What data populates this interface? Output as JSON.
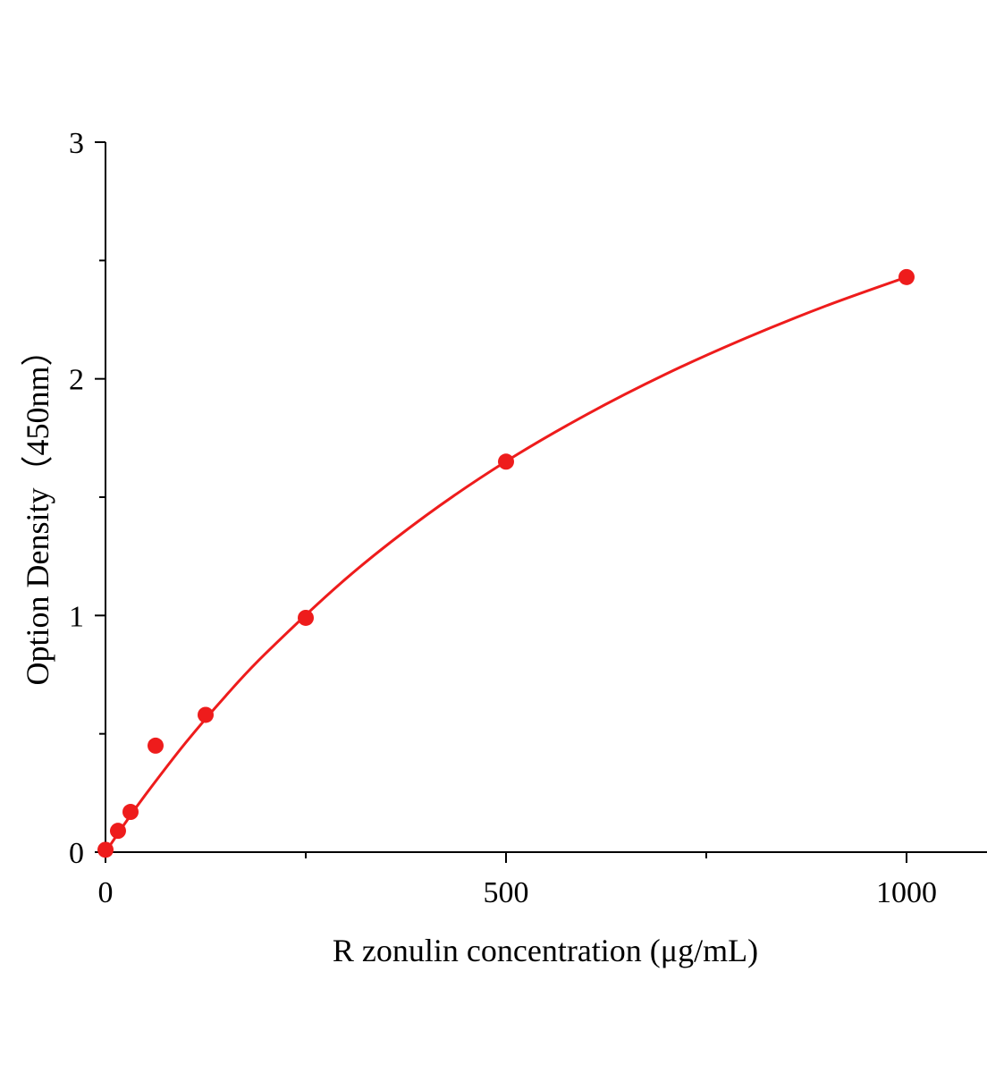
{
  "chart_data": {
    "type": "scatter",
    "title": "",
    "xlabel": "R zonulin  concentration (μg/mL)",
    "ylabel": "Option Density（450nm）",
    "xlim": [
      0,
      1100
    ],
    "ylim": [
      0,
      3
    ],
    "x_ticks": [
      "0",
      "500",
      "1000"
    ],
    "x_tick_values": [
      0,
      500,
      1000
    ],
    "x_minor_ticks": [
      250,
      750
    ],
    "y_ticks": [
      "0",
      "1",
      "2",
      "3"
    ],
    "y_tick_values": [
      0,
      1,
      2,
      3
    ],
    "y_minor_ticks": [
      0.5,
      1.5,
      2.5
    ],
    "grid": false,
    "color": "#ee1c1c",
    "points": {
      "x": [
        0,
        15.6,
        31.25,
        62.5,
        125,
        250,
        500,
        1000
      ],
      "y": [
        0.01,
        0.09,
        0.17,
        0.45,
        0.58,
        0.99,
        1.65,
        2.43
      ]
    },
    "fit_curve": {
      "x": [
        0,
        25,
        50,
        100,
        150,
        200,
        300,
        400,
        500,
        600,
        700,
        800,
        900,
        1000
      ],
      "y": [
        0,
        0.125,
        0.243,
        0.462,
        0.66,
        0.84,
        1.155,
        1.422,
        1.651,
        1.848,
        2.021,
        2.173,
        2.309,
        2.43
      ]
    }
  }
}
